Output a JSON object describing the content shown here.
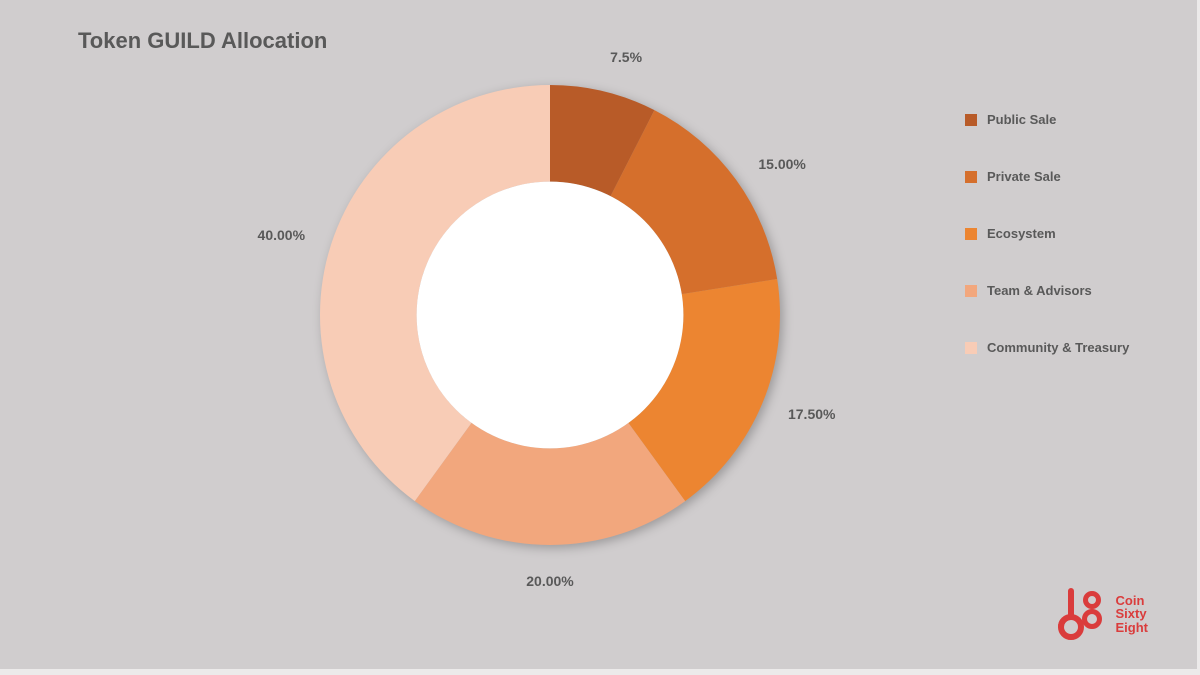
{
  "title": "Token GUILD Allocation",
  "chart": {
    "type": "donut",
    "inner_radius_ratio": 0.58,
    "background_color": "#d0cdce",
    "hole_color": "#ffffff",
    "label_fontsize": 14,
    "label_fontweight": 600,
    "label_color": "#595959",
    "shadow": true,
    "slices": [
      {
        "name": "Public Sale",
        "value": 7.5,
        "label": "7.5%",
        "color": "#b85b28"
      },
      {
        "name": "Private Sale",
        "value": 15.0,
        "label": "15.00%",
        "color": "#d56f2c"
      },
      {
        "name": "Ecosystem",
        "value": 17.5,
        "label": "17.50%",
        "color": "#ec8531"
      },
      {
        "name": "Team & Advisors",
        "value": 20.0,
        "label": "20.00%",
        "color": "#f2a77d"
      },
      {
        "name": "Community & Treasury",
        "value": 40.0,
        "label": "40.00%",
        "color": "#f8ccb6"
      }
    ]
  },
  "legend": {
    "items": [
      {
        "label": "Public Sale",
        "color": "#b85b28"
      },
      {
        "label": "Private Sale",
        "color": "#d56f2c"
      },
      {
        "label": "Ecosystem",
        "color": "#ec8531"
      },
      {
        "label": "Team & Advisors",
        "color": "#f2a77d"
      },
      {
        "label": "Community & Treasury",
        "color": "#f8ccb6"
      }
    ],
    "fontsize": 13,
    "color": "#595959"
  },
  "logo": {
    "brand_color": "#da3c3c",
    "line1": "Coin",
    "line2": "Sixty",
    "line3": "Eight"
  }
}
